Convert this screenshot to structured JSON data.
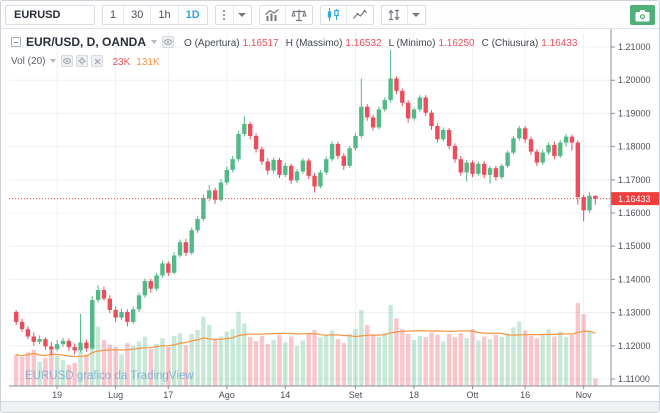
{
  "toolbar": {
    "symbol": "EURUSD",
    "intervals": [
      "1",
      "30",
      "1h",
      "1D"
    ],
    "active_interval": "1D",
    "icons": [
      "menu-dots-icon",
      "interval-dropdown-icon",
      "indicators-icon",
      "compare-icon",
      "candles-style-icon",
      "line-style-icon",
      "styles-arrows-icon",
      "styles-dropdown-icon",
      "camera-icon"
    ]
  },
  "legend": {
    "title": "EUR/USD, D, OANDA",
    "ohlc": [
      {
        "label": "O (Apertura)",
        "value": "1.16517"
      },
      {
        "label": "H (Massimo)",
        "value": "1.16532"
      },
      {
        "label": "L (Minimo)",
        "value": "1.16250"
      },
      {
        "label": "C (Chiusura)",
        "value": "1.16433"
      }
    ],
    "indicator": {
      "label": "Vol (20)",
      "values": [
        {
          "text": "23K",
          "color": "#eb4d5c"
        },
        {
          "text": "131K",
          "color": "#f89441"
        }
      ]
    }
  },
  "watermark": "EURUSD grafico da TradingView",
  "colors": {
    "up": "#53b987",
    "down": "#eb4d5c",
    "vol_up": "rgba(83,185,135,0.32)",
    "vol_down": "rgba(235,77,92,0.32)",
    "ma": "#f89441",
    "accent": "#2ea6e0",
    "camera": "#4fb079",
    "price_label": "#ef3e3e",
    "grid": "#edf0f3",
    "axis_text": "#4a4e59",
    "axis_line": "#8a8e98"
  },
  "chart_data": {
    "type": "candlestick",
    "title": "EUR/USD, D, OANDA",
    "legend_position": "top-left",
    "grid": true,
    "y_axis": {
      "min": 1.11,
      "max": 1.21,
      "ticks": [
        "1.21000",
        "1.20000",
        "1.19000",
        "1.18000",
        "1.17000",
        "1.16000",
        "1.15000",
        "1.14000",
        "1.13000",
        "1.12000",
        "1.11000"
      ]
    },
    "x_axis": {
      "labels": [
        {
          "text": "19",
          "i": 7
        },
        {
          "text": "Lug",
          "i": 17
        },
        {
          "text": "17",
          "i": 26
        },
        {
          "text": "Ago",
          "i": 36
        },
        {
          "text": "14",
          "i": 46
        },
        {
          "text": "Set",
          "i": 58
        },
        {
          "text": "18",
          "i": 68
        },
        {
          "text": "Ott",
          "i": 78
        },
        {
          "text": "16",
          "i": 87
        },
        {
          "text": "Nov",
          "i": 97
        }
      ]
    },
    "last_price": {
      "value": 1.16433,
      "label": "1.16433"
    },
    "candles": [
      [
        1.1302,
        1.1308,
        1.1262,
        1.1272
      ],
      [
        1.1272,
        1.1281,
        1.1242,
        1.125
      ],
      [
        1.125,
        1.1259,
        1.122,
        1.1228
      ],
      [
        1.1228,
        1.124,
        1.12,
        1.1212
      ],
      [
        1.1212,
        1.1231,
        1.1205,
        1.122
      ],
      [
        1.122,
        1.1226,
        1.1188,
        1.1198
      ],
      [
        1.1198,
        1.1212,
        1.1172,
        1.119
      ],
      [
        1.119,
        1.1218,
        1.1183,
        1.1205
      ],
      [
        1.1205,
        1.1224,
        1.1196,
        1.1215
      ],
      [
        1.1215,
        1.1222,
        1.1185,
        1.1196
      ],
      [
        1.1196,
        1.1207,
        1.1174,
        1.1186
      ],
      [
        1.1186,
        1.1296,
        1.118,
        1.121
      ],
      [
        1.121,
        1.1218,
        1.1182,
        1.1192
      ],
      [
        1.1192,
        1.135,
        1.1188,
        1.1338
      ],
      [
        1.1338,
        1.1382,
        1.133,
        1.1368
      ],
      [
        1.1368,
        1.1378,
        1.1336,
        1.1342
      ],
      [
        1.1342,
        1.1352,
        1.1298,
        1.1308
      ],
      [
        1.1308,
        1.1318,
        1.1272,
        1.1285
      ],
      [
        1.1285,
        1.1312,
        1.1278,
        1.1302
      ],
      [
        1.1302,
        1.131,
        1.1258,
        1.1272
      ],
      [
        1.1272,
        1.1318,
        1.1266,
        1.131
      ],
      [
        1.131,
        1.136,
        1.1302,
        1.1352
      ],
      [
        1.1352,
        1.1402,
        1.1345,
        1.1395
      ],
      [
        1.1395,
        1.1402,
        1.136,
        1.1372
      ],
      [
        1.1372,
        1.142,
        1.1365,
        1.1412
      ],
      [
        1.1412,
        1.1456,
        1.1405,
        1.1448
      ],
      [
        1.1448,
        1.1455,
        1.141,
        1.142
      ],
      [
        1.142,
        1.1482,
        1.1415,
        1.1472
      ],
      [
        1.1472,
        1.152,
        1.1466,
        1.1512
      ],
      [
        1.1512,
        1.1522,
        1.147,
        1.148
      ],
      [
        1.148,
        1.1556,
        1.1474,
        1.1548
      ],
      [
        1.1548,
        1.159,
        1.154,
        1.1582
      ],
      [
        1.1582,
        1.1655,
        1.1576,
        1.1645
      ],
      [
        1.1645,
        1.1684,
        1.1636,
        1.1668
      ],
      [
        1.1668,
        1.1676,
        1.1628,
        1.164
      ],
      [
        1.164,
        1.1702,
        1.1634,
        1.1692
      ],
      [
        1.1692,
        1.174,
        1.1684,
        1.173
      ],
      [
        1.173,
        1.1772,
        1.1722,
        1.1762
      ],
      [
        1.1762,
        1.1846,
        1.1756,
        1.1838
      ],
      [
        1.1838,
        1.1892,
        1.183,
        1.1868
      ],
      [
        1.1868,
        1.1875,
        1.1822,
        1.1832
      ],
      [
        1.1832,
        1.184,
        1.1782,
        1.1792
      ],
      [
        1.1792,
        1.18,
        1.1745,
        1.1755
      ],
      [
        1.1755,
        1.1765,
        1.1716,
        1.1728
      ],
      [
        1.1728,
        1.1768,
        1.172,
        1.176
      ],
      [
        1.176,
        1.1766,
        1.1705,
        1.1715
      ],
      [
        1.1715,
        1.175,
        1.1708,
        1.1742
      ],
      [
        1.1742,
        1.1748,
        1.1688,
        1.1698
      ],
      [
        1.1698,
        1.1732,
        1.169,
        1.1725
      ],
      [
        1.1725,
        1.1765,
        1.1718,
        1.1758
      ],
      [
        1.1758,
        1.1764,
        1.1702,
        1.1712
      ],
      [
        1.1712,
        1.172,
        1.1662,
        1.168
      ],
      [
        1.168,
        1.173,
        1.1674,
        1.1722
      ],
      [
        1.1722,
        1.177,
        1.1715,
        1.1762
      ],
      [
        1.1762,
        1.1816,
        1.1756,
        1.1808
      ],
      [
        1.1808,
        1.1815,
        1.1762,
        1.1772
      ],
      [
        1.1772,
        1.178,
        1.173,
        1.1742
      ],
      [
        1.1742,
        1.1802,
        1.1736,
        1.1795
      ],
      [
        1.1795,
        1.184,
        1.1788,
        1.1832
      ],
      [
        1.1832,
        1.2005,
        1.1825,
        1.192
      ],
      [
        1.192,
        1.1928,
        1.1878,
        1.1888
      ],
      [
        1.1888,
        1.1895,
        1.1848,
        1.1858
      ],
      [
        1.1858,
        1.192,
        1.1852,
        1.1912
      ],
      [
        1.1912,
        1.1948,
        1.1905,
        1.194
      ],
      [
        1.194,
        1.2092,
        1.1932,
        1.2005
      ],
      [
        1.2005,
        1.2012,
        1.1958,
        1.1968
      ],
      [
        1.1968,
        1.1975,
        1.1922,
        1.1932
      ],
      [
        1.1932,
        1.194,
        1.1872,
        1.1885
      ],
      [
        1.1885,
        1.1918,
        1.1878,
        1.1912
      ],
      [
        1.1912,
        1.1955,
        1.1905,
        1.1948
      ],
      [
        1.1948,
        1.1955,
        1.1892,
        1.1902
      ],
      [
        1.1902,
        1.191,
        1.185,
        1.1862
      ],
      [
        1.1862,
        1.187,
        1.1812,
        1.1822
      ],
      [
        1.1822,
        1.1858,
        1.1815,
        1.185
      ],
      [
        1.185,
        1.1856,
        1.1792,
        1.1802
      ],
      [
        1.1802,
        1.181,
        1.1752,
        1.1762
      ],
      [
        1.1762,
        1.1772,
        1.1712,
        1.1722
      ],
      [
        1.1722,
        1.176,
        1.1695,
        1.1752
      ],
      [
        1.1752,
        1.1758,
        1.1708,
        1.1718
      ],
      [
        1.1718,
        1.1755,
        1.1712,
        1.1748
      ],
      [
        1.1748,
        1.1756,
        1.1705,
        1.1715
      ],
      [
        1.1715,
        1.1742,
        1.1688,
        1.1735
      ],
      [
        1.1735,
        1.1742,
        1.1698,
        1.1708
      ],
      [
        1.1708,
        1.1748,
        1.1702,
        1.1742
      ],
      [
        1.1742,
        1.1788,
        1.1736,
        1.1782
      ],
      [
        1.1782,
        1.1832,
        1.1776,
        1.1825
      ],
      [
        1.1825,
        1.1862,
        1.1818,
        1.1855
      ],
      [
        1.1855,
        1.1862,
        1.1812,
        1.1822
      ],
      [
        1.1822,
        1.183,
        1.1775,
        1.1785
      ],
      [
        1.1785,
        1.1792,
        1.1742,
        1.1752
      ],
      [
        1.1752,
        1.179,
        1.1745,
        1.1782
      ],
      [
        1.1782,
        1.1812,
        1.1775,
        1.1805
      ],
      [
        1.1805,
        1.1815,
        1.1762,
        1.1772
      ],
      [
        1.1772,
        1.182,
        1.1766,
        1.1812
      ],
      [
        1.1812,
        1.1838,
        1.18,
        1.183
      ],
      [
        1.183,
        1.1836,
        1.1788,
        1.1812
      ],
      [
        1.1812,
        1.1818,
        1.1625,
        1.1648
      ],
      [
        1.1648,
        1.1655,
        1.1575,
        1.1608
      ],
      [
        1.1608,
        1.1662,
        1.16,
        1.1652
      ],
      [
        1.16517,
        1.16532,
        1.1625,
        1.16433
      ]
    ],
    "volumes": [
      95,
      88,
      102,
      110,
      73,
      85,
      120,
      92,
      78,
      64,
      70,
      105,
      96,
      235,
      180,
      140,
      125,
      118,
      96,
      130,
      122,
      135,
      150,
      112,
      128,
      145,
      118,
      152,
      160,
      124,
      158,
      170,
      210,
      185,
      142,
      150,
      165,
      172,
      225,
      190,
      148,
      136,
      152,
      128,
      140,
      155,
      132,
      150,
      122,
      138,
      160,
      170,
      148,
      155,
      168,
      142,
      130,
      158,
      172,
      230,
      185,
      155,
      148,
      160,
      245,
      205,
      172,
      158,
      140,
      152,
      148,
      162,
      155,
      135,
      158,
      148,
      160,
      145,
      172,
      138,
      150,
      142,
      155,
      148,
      160,
      178,
      195,
      168,
      152,
      145,
      158,
      172,
      150,
      165,
      148,
      155,
      252,
      218,
      165,
      23
    ],
    "volume_ma_window": 20
  }
}
